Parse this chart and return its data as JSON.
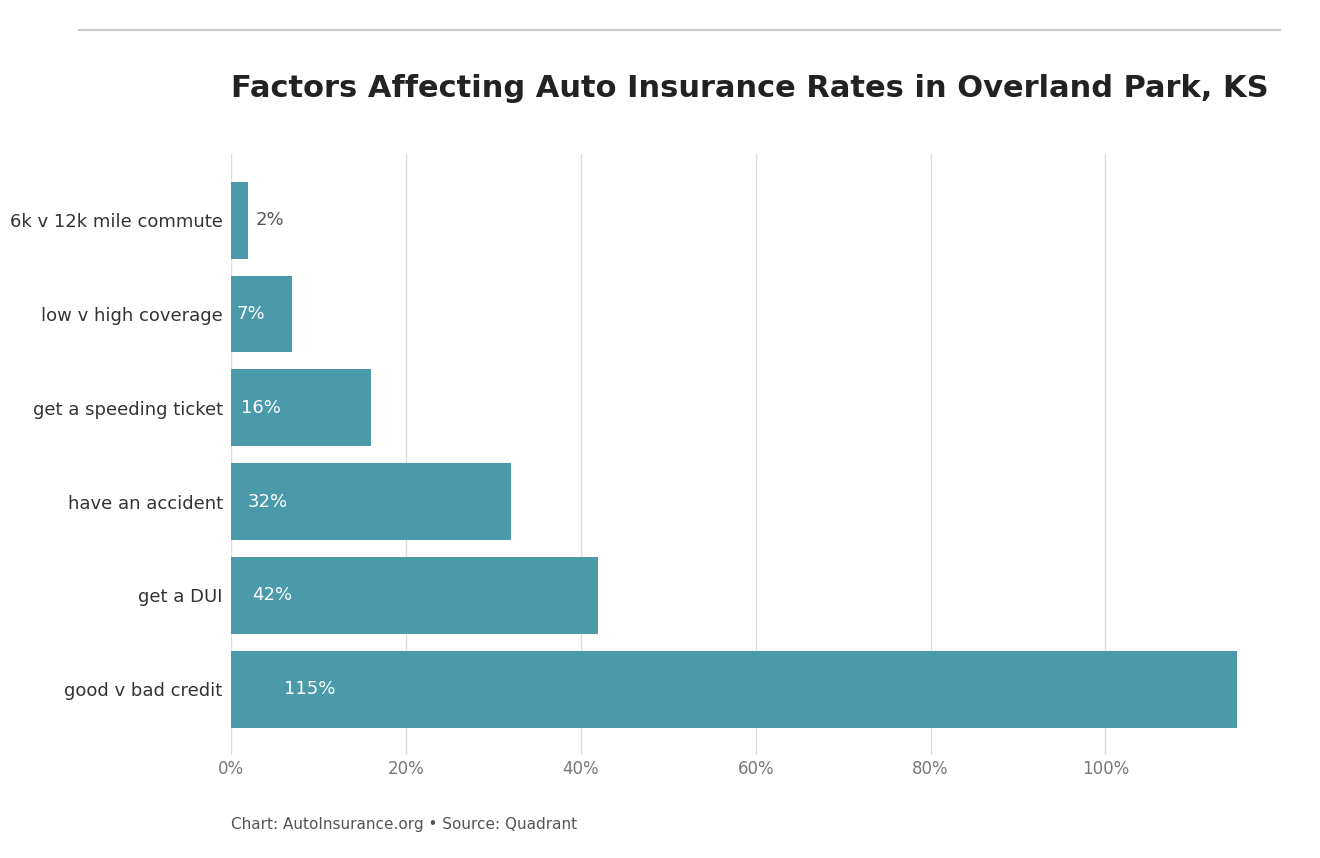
{
  "title": "Factors Affecting Auto Insurance Rates in Overland Park, KS",
  "categories": [
    "good v bad credit",
    "get a DUI",
    "have an accident",
    "get a speeding ticket",
    "low v high coverage",
    "6k v 12k mile commute"
  ],
  "values": [
    115,
    42,
    32,
    16,
    7,
    2
  ],
  "bar_color": "#4a9aaa",
  "label_color_inside": "#ffffff",
  "label_color_outside": "#555555",
  "label_fontsize": 13,
  "title_fontsize": 22,
  "ylabel_fontsize": 13,
  "xlabel_fontsize": 12,
  "background_color": "#ffffff",
  "footer_text": "Chart: AutoInsurance.org • Source: Quadrant",
  "footer_fontsize": 11,
  "footer_color": "#555555",
  "xlim": [
    0,
    120
  ],
  "xtick_values": [
    0,
    20,
    40,
    60,
    80,
    100
  ],
  "xtick_labels": [
    "0%",
    "20%",
    "40%",
    "60%",
    "80%",
    "100%"
  ],
  "grid_color": "#dddddd",
  "top_line_color": "#cccccc",
  "bar_height": 0.82
}
